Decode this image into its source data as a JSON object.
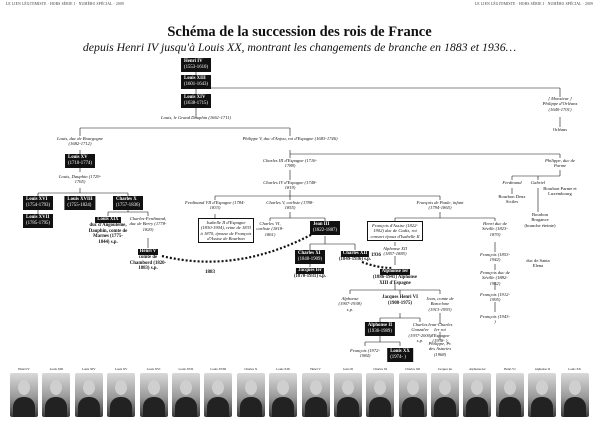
{
  "header": {
    "left": "LE LIEN LÉGITIMISTE · HORS SÉRIE I · NUMÉRO SPÉCIAL · 2009",
    "right": "LE LIEN LÉGITIMISTE · HORS SÉRIE I · NUMÉRO SPÉCIAL · 2009"
  },
  "title": "Schéma de la succession des rois de France",
  "subtitle": "depuis Henri IV jusqu'à Louis XX, montrant les changements de branche en 1883 et 1936…",
  "diagram": {
    "henri4": {
      "name": "Henri IV",
      "dates": "(1553-1610)"
    },
    "louis13": {
      "name": "Louis XIII",
      "dates": "(1601-1643)"
    },
    "louis14": {
      "name": "Louis XIV",
      "dates": "(1638-1715)"
    },
    "grand_dauphin": "Louis, le Grand Dauphin (1661-1711)",
    "monsieur": "[ Monsieur ] Philippe d'Orléans (1640-1701)",
    "orleans": "Orléans",
    "bourgogne": "Louis, duc de Bourgogne (1682-1712)",
    "philippe5": "Philippe V, duc d'Anjou, roi d'Espagne (1683-1746)",
    "louis15": {
      "name": "Louis XV",
      "dates": "(1710-1774)"
    },
    "charles3": "Charles III d'Espagne (1716-1788)",
    "philippe_parme": "Philippe, duc de Parme",
    "louis_dauphin": "Louis, Dauphin (1729-1765)",
    "charles4": "Charles IV d'Espagne (1748-1819)",
    "louis16": {
      "name": "Louis XVI",
      "dates": "(1754-1793)"
    },
    "louis18": {
      "name": "Louis XVIII",
      "dates": "(1755-1824)"
    },
    "charles10": {
      "name": "Charles X",
      "dates": "(1757-1836)"
    },
    "ferdinand": "Ferdinand",
    "gabriel": "Gabriel",
    "bourbon_parme": "Bourbon Parme et Luxembourg",
    "bourbon_deux_siciles": "Bourbon Deux Siciles",
    "bourbon_bragance": "Bourbon Bragance (branche éteinte)",
    "louis17": {
      "name": "Louis XVII",
      "dates": "(1785-1795)"
    },
    "louis19": {
      "name": "Louis XIX",
      "dates": "duc d'Angoulême, Dauphin, comte de Marnes (1775-1844) s.p."
    },
    "charles_ferdinand": "Charles-Ferdinand, duc de Berry (1778-1820)",
    "ferdinand7": "Ferdinand VII d'Espagne (1784-1833)",
    "isabelle2": "Isabelle II d'Espagne (1830-1904), reine de 1833 à 1870, épouse de François d'Assise de Bourbon",
    "charles_carliste": "Charles V, carliste (1788-1855)",
    "francois_paule": "François de Paule, infant (1794-1865)",
    "henri_seville": "Henri duc de Séville (1823-1870)",
    "henri5": {
      "name": "Henri V",
      "dates": "comte de Chambord (1820-1883) s.p."
    },
    "year1883": "1883",
    "charles6": "Charles VI, carliste (1818-1861)",
    "jean3": {
      "name": "Jean III",
      "dates": "(1822-1887)"
    },
    "francois_assise": "François d'Assise (1822-1902) duc de Cadix, roi consort époux d'Isabelle II",
    "alphonse12": "Alphonse XII (1857-1885)",
    "francois_1853": "François (1853-1942)",
    "francois_1882": "François duc de Séville (1882-1952)",
    "francois_1912": "François (1912-1995)",
    "francois_1943": "François (1943- )",
    "duc_santa_elena": "duc de Santa Elena",
    "charles11": {
      "name": "Charles XI",
      "dates": "(1848-1909)"
    },
    "charles12": {
      "name": "Charles XII",
      "dates": "(1849-1936) s.p."
    },
    "jacques1": {
      "name": "Jacques Ier",
      "dates": "(1870-1931) s.p."
    },
    "year1936": "1936",
    "alphonse1": {
      "name": "Alphonse Ier",
      "dates": "(1886-1941) Alphonse XIII d'Espagne"
    },
    "alphonse_1907": "Alphonse (1907-1938) s.p.",
    "jacques_henri6": {
      "name": "Jacques Henri VI",
      "dates": "(1908-1975)"
    },
    "jean_barcelone": "Jean, comte de Barcelone (1913-1993)",
    "alphonse2": {
      "name": "Alphonse II",
      "dates": "(1936-1989)"
    },
    "charles_gonzalve": "Charles Gonzalve (1937-2000) s.p.",
    "juan_carlos": "Jean-Charles Ier roi d'Espagne (1938- )",
    "philippe_asturies": "Philippe, Pr. des Asturies (1968)",
    "francois_1972": "François (1972-1984)",
    "louis20": {
      "name": "Louis XX",
      "dates": "(1974- )"
    }
  },
  "portraits": [
    "Henri IV",
    "Louis XIII",
    "Louis XIV",
    "Louis XV",
    "Louis XVI",
    "Louis XVII",
    "Louis XVIII",
    "Charles X",
    "Louis XIX",
    "Henri V",
    "Jean III",
    "Charles XI",
    "Charles XII",
    "Jacques Ier",
    "Alphonse Ier",
    "Henri VI",
    "Alphonse II",
    "Louis XX"
  ]
}
